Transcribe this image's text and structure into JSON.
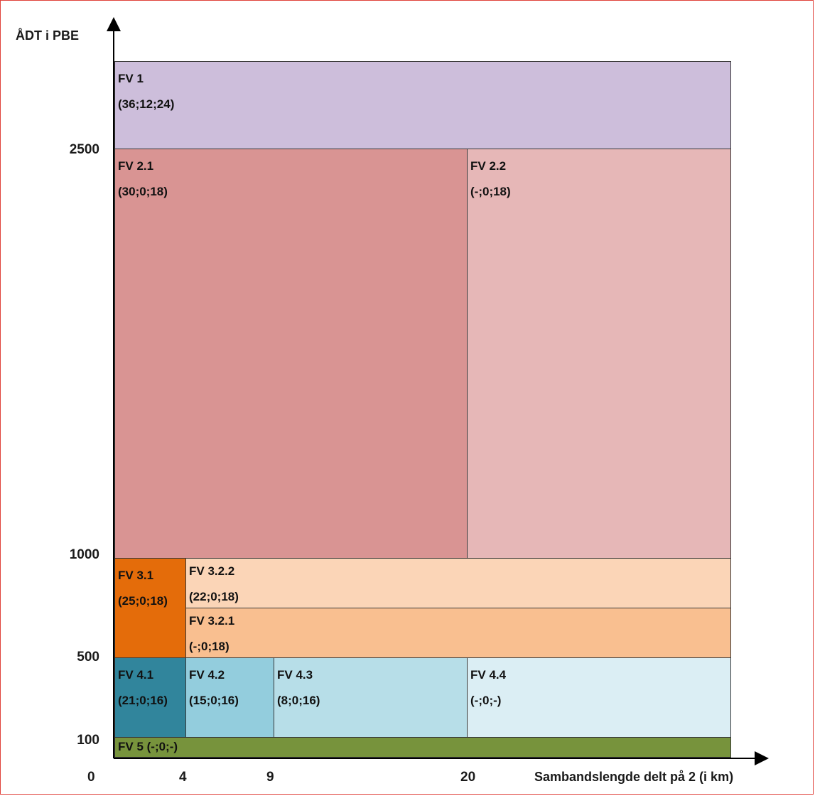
{
  "y_axis_title": "ÅDT i PBE",
  "x_axis_title": "Sambandslengde delt på 2 (i km)",
  "y_ticks": [
    "2500",
    "1000",
    "500",
    "100",
    "0"
  ],
  "x_ticks": [
    "4",
    "9",
    "20"
  ],
  "regions": [
    {
      "id": "fv1",
      "name": "FV 1",
      "values": "(36;12;24)",
      "color": "#cdbedb"
    },
    {
      "id": "fv21",
      "name": "FV 2.1",
      "values": "(30;0;18)",
      "color": "#d99493"
    },
    {
      "id": "fv22",
      "name": "FV 2.2",
      "values": "(-;0;18)",
      "color": "#e6b7b7"
    },
    {
      "id": "fv31",
      "name": "FV 3.1",
      "values": "(25;0;18)",
      "color": "#e46c0a"
    },
    {
      "id": "fv322",
      "name": "FV 3.2.2",
      "values": "(22;0;18)",
      "color": "#fbd5b7"
    },
    {
      "id": "fv321",
      "name": "FV 3.2.1",
      "values": "(-;0;18)",
      "color": "#f9bf90"
    },
    {
      "id": "fv41",
      "name": "FV 4.1",
      "values": "(21;0;16)",
      "color": "#31859c"
    },
    {
      "id": "fv42",
      "name": "FV 4.2",
      "values": "(15;0;16)",
      "color": "#93cddd"
    },
    {
      "id": "fv43",
      "name": "FV 4.3",
      "values": "(8;0;16)",
      "color": "#b7dee8"
    },
    {
      "id": "fv44",
      "name": "FV 4.4",
      "values": "(-;0;-)",
      "color": "#dbeef4"
    },
    {
      "id": "fv5",
      "name": "FV 5 (-;0;-)",
      "values": "",
      "color": "#77933c"
    }
  ]
}
